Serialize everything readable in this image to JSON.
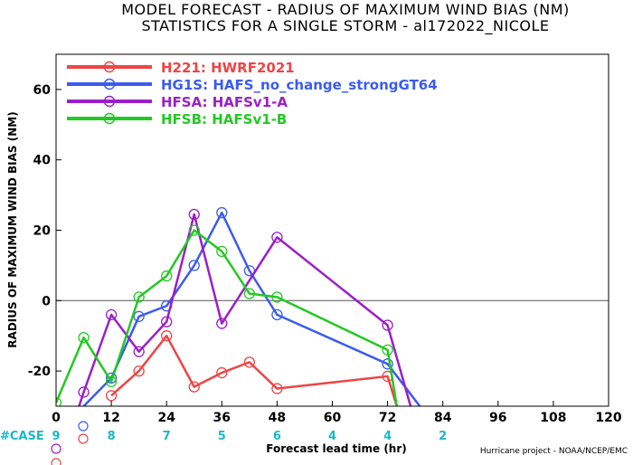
{
  "chart_data": {
    "type": "line",
    "title_line1": "MODEL FORECAST - RADIUS OF MAXIMUM WIND BIAS (NM)",
    "title_line2": "STATISTICS FOR A SINGLE STORM - al172022_NICOLE",
    "xlabel": "Forecast lead time (hr)",
    "ylabel": "RADIUS OF MAXIMUM WIND BIAS (NM)",
    "xlim": [
      0,
      120
    ],
    "ylim": [
      -30,
      70
    ],
    "xticks": [
      "0",
      "12",
      "24",
      "36",
      "48",
      "60",
      "72",
      "84",
      "96",
      "108",
      "120"
    ],
    "yticks": [
      "-20",
      "0",
      "20",
      "40",
      "60"
    ],
    "zero_line": true,
    "legend_position": "top-left",
    "series": [
      {
        "name": "H221: HWRF2021",
        "color": "#ef4444",
        "x": [
          12,
          18,
          24,
          30,
          36,
          42,
          48,
          72,
          74
        ],
        "y": [
          -27,
          -20,
          -10,
          -24.5,
          -20.5,
          -17.5,
          -25,
          -21.5,
          -30
        ]
      },
      {
        "name": "HG1S: HAFS_no_change_strongGT64",
        "color": "#3b5bef",
        "x": [
          6,
          12,
          18,
          24,
          30,
          36,
          42,
          48,
          72,
          79
        ],
        "y": [
          -30,
          -22,
          -4.5,
          -1.5,
          10,
          25,
          8.5,
          -4,
          -18,
          -30
        ]
      },
      {
        "name": "HFSA: HAFSv1-A",
        "color": "#9b1fc9",
        "x": [
          5,
          6,
          12,
          18,
          24,
          30,
          36,
          48,
          72,
          77
        ],
        "y": [
          -30,
          -26,
          -4,
          -14.5,
          -6,
          24.5,
          -6.5,
          18,
          -7,
          -30
        ]
      },
      {
        "name": "HFSB: HAFSv1-B",
        "color": "#22c922",
        "x": [
          0,
          6,
          12,
          18,
          24,
          30,
          36,
          42,
          48,
          72,
          74
        ],
        "y": [
          -29,
          -10.5,
          -23,
          1,
          7,
          20,
          14,
          2,
          1,
          -14,
          -30
        ]
      }
    ],
    "case_label": "#CASE",
    "case_counts": [
      {
        "x": 0,
        "label": "9"
      },
      {
        "x": 12,
        "label": "8"
      },
      {
        "x": 24,
        "label": "7"
      },
      {
        "x": 36,
        "label": "5"
      },
      {
        "x": 48,
        "label": "6"
      },
      {
        "x": 60,
        "label": "4"
      },
      {
        "x": 72,
        "label": "4"
      },
      {
        "x": 84,
        "label": "2"
      }
    ],
    "credit": "Hurricane project - NOAA/NCEP/EMC"
  }
}
